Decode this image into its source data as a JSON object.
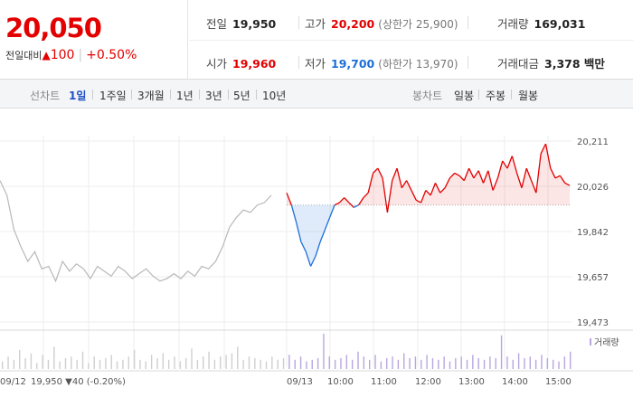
{
  "quote": {
    "current_price": "20,050",
    "change_label": "전일대비",
    "change_arrow": "▲",
    "change_value": "100",
    "change_pct": "+0.50%"
  },
  "stats": {
    "prev_close_label": "전일",
    "prev_close": "19,950",
    "high_label": "고가",
    "high": "20,200",
    "upper_limit": "(상한가 25,900)",
    "volume_label": "거래량",
    "volume": "169,031",
    "open_label": "시가",
    "open": "19,960",
    "low_label": "저가",
    "low": "19,700",
    "lower_limit": "(하한가 13,970)",
    "amount_label": "거래대금",
    "amount": "3,378 백만"
  },
  "tabs": {
    "line_chart_label": "선차트",
    "periods": [
      "1일",
      "1주일",
      "3개월",
      "1년",
      "3년",
      "5년",
      "10년"
    ],
    "active_period": "1일",
    "candle_chart_label": "봉차트",
    "candles": [
      "일봉",
      "주봉",
      "월봉"
    ]
  },
  "colors": {
    "up": "#e30000",
    "down": "#1e6fd9",
    "prev_line": "#b8b8b8",
    "volume_bar": "#b9a6de"
  },
  "chart_data": {
    "type": "line",
    "y_ticks": [
      "20,211",
      "20,026",
      "19,842",
      "19,657",
      "19,473"
    ],
    "ylim": [
      19473,
      20211
    ],
    "x_tick_labels": [
      "09/12",
      "09/13",
      "10:00",
      "11:00",
      "12:00",
      "13:00",
      "14:00",
      "15:00"
    ],
    "baseline": 19950,
    "volume_legend": "거래량",
    "prev_day_label": "09/12",
    "prev_day_price": "19,950",
    "prev_day_change": "▼40",
    "prev_day_pct": "(-0.20%)",
    "prev_day_series": {
      "name": "09/12",
      "values": [
        20050,
        19990,
        19850,
        19780,
        19720,
        19760,
        19690,
        19700,
        19640,
        19720,
        19680,
        19710,
        19690,
        19650,
        19700,
        19680,
        19660,
        19700,
        19680,
        19650,
        19670,
        19690,
        19660,
        19640,
        19650,
        19670,
        19650,
        19680,
        19660,
        19700,
        19690,
        19720,
        19780,
        19860,
        19900,
        19930,
        19920,
        19950,
        19960,
        19990
      ]
    },
    "today_series": {
      "name": "09/13",
      "values": [
        20000,
        19950,
        19880,
        19800,
        19760,
        19700,
        19740,
        19800,
        19850,
        19900,
        19950,
        19960,
        19980,
        19960,
        19940,
        19950,
        19980,
        20000,
        20080,
        20100,
        20060,
        19920,
        20050,
        20100,
        20020,
        20050,
        20010,
        19970,
        19960,
        20010,
        19990,
        20040,
        20000,
        20020,
        20060,
        20080,
        20070,
        20050,
        20100,
        20060,
        20090,
        20040,
        20090,
        20010,
        20060,
        20130,
        20100,
        20150,
        20080,
        20020,
        20100,
        20050,
        20000,
        20160,
        20200,
        20100,
        20060,
        20070,
        20040,
        20030
      ]
    },
    "volume": [
      0.15,
      0.3,
      0.2,
      0.5,
      0.25,
      0.4,
      0.1,
      0.35,
      0.2,
      0.6,
      0.15,
      0.25,
      0.3,
      0.2,
      0.45,
      0.1,
      0.3,
      0.2,
      0.25,
      0.35,
      0.15,
      0.2,
      0.3,
      0.5,
      0.2,
      0.15,
      0.35,
      0.25,
      0.4,
      0.2,
      0.3,
      0.15,
      0.25,
      0.55,
      0.2,
      0.3,
      0.45,
      0.2,
      0.3,
      0.35,
      0.4,
      0.6,
      0.2,
      0.3,
      0.25,
      0.2,
      0.15,
      0.3,
      0.2,
      0.25,
      0.35,
      0.2,
      0.3,
      0.15,
      0.2,
      0.25,
      1.0,
      0.3,
      0.2,
      0.25,
      0.35,
      0.2,
      0.45,
      0.3,
      0.2,
      0.35,
      0.15,
      0.25,
      0.3,
      0.2,
      0.4,
      0.25,
      0.3,
      0.2,
      0.35,
      0.25,
      0.2,
      0.3,
      0.15,
      0.25,
      0.3,
      0.2,
      0.35,
      0.25,
      0.2,
      0.3,
      0.25,
      0.95,
      0.3,
      0.2,
      0.4,
      0.25,
      0.3,
      0.2,
      0.35,
      0.25,
      0.2,
      0.15,
      0.3,
      0.45
    ]
  }
}
